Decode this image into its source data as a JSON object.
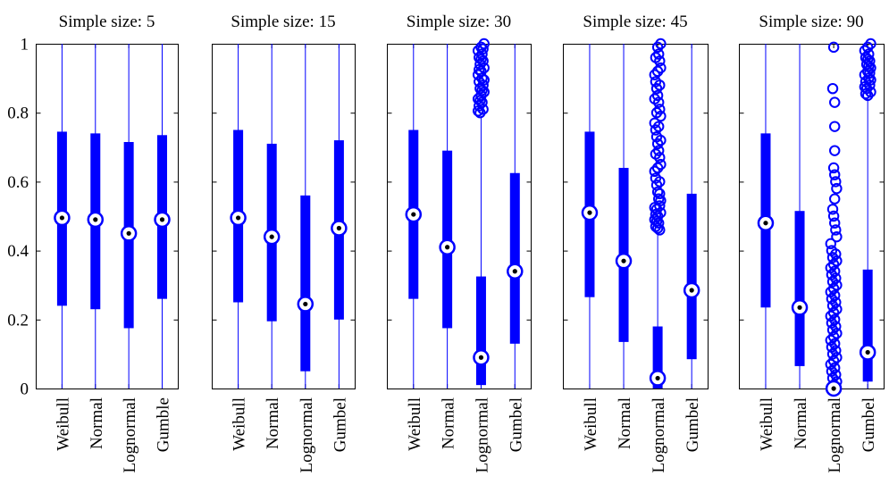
{
  "colors": {
    "box": "#0000ff",
    "axis": "#000000",
    "median_dot": "#000000",
    "median_bg": "#ffffff"
  },
  "chart_data": [
    {
      "type": "box",
      "title": "Simple size: 5",
      "categories": [
        "Weibull",
        "Normal",
        "Lognormal",
        "Gumble"
      ],
      "ylim": [
        0,
        1
      ],
      "yticks": [
        "0",
        "0.2",
        "0.4",
        "0.6",
        "0.8",
        "1"
      ],
      "grid": false,
      "boxes": [
        {
          "q1": 0.24,
          "median": 0.495,
          "q3": 0.745,
          "whisker_low": 0.0,
          "whisker_high": 1.0,
          "outliers": []
        },
        {
          "q1": 0.23,
          "median": 0.49,
          "q3": 0.74,
          "whisker_low": 0.0,
          "whisker_high": 1.0,
          "outliers": []
        },
        {
          "q1": 0.175,
          "median": 0.45,
          "q3": 0.715,
          "whisker_low": 0.0,
          "whisker_high": 1.0,
          "outliers": []
        },
        {
          "q1": 0.26,
          "median": 0.49,
          "q3": 0.735,
          "whisker_low": 0.0,
          "whisker_high": 1.0,
          "outliers": []
        }
      ]
    },
    {
      "type": "box",
      "title": "Simple size: 15",
      "categories": [
        "Weibull",
        "Normal",
        "Lognormal",
        "Gumbel"
      ],
      "ylim": [
        0,
        1
      ],
      "grid": false,
      "boxes": [
        {
          "q1": 0.25,
          "median": 0.495,
          "q3": 0.75,
          "whisker_low": 0.0,
          "whisker_high": 1.0,
          "outliers": []
        },
        {
          "q1": 0.195,
          "median": 0.44,
          "q3": 0.71,
          "whisker_low": 0.0,
          "whisker_high": 1.0,
          "outliers": []
        },
        {
          "q1": 0.05,
          "median": 0.245,
          "q3": 0.56,
          "whisker_low": 0.0,
          "whisker_high": 1.0,
          "outliers": []
        },
        {
          "q1": 0.2,
          "median": 0.465,
          "q3": 0.72,
          "whisker_low": 0.0,
          "whisker_high": 1.0,
          "outliers": []
        }
      ]
    },
    {
      "type": "box",
      "title": "Simple size: 30",
      "categories": [
        "Weibull",
        "Normal",
        "Lognormal",
        "Gumbel"
      ],
      "ylim": [
        0,
        1
      ],
      "grid": false,
      "boxes": [
        {
          "q1": 0.26,
          "median": 0.505,
          "q3": 0.75,
          "whisker_low": 0.0,
          "whisker_high": 1.0,
          "outliers": []
        },
        {
          "q1": 0.175,
          "median": 0.41,
          "q3": 0.69,
          "whisker_low": 0.0,
          "whisker_high": 1.0,
          "outliers": []
        },
        {
          "q1": 0.01,
          "median": 0.09,
          "q3": 0.325,
          "whisker_low": 0.0,
          "whisker_high": 0.79,
          "outliers": [
            0.8,
            0.81,
            0.82,
            0.83,
            0.84,
            0.85,
            0.86,
            0.87,
            0.88,
            0.89,
            0.9,
            0.91,
            0.92,
            0.93,
            0.94,
            0.95,
            0.96,
            0.97,
            0.98,
            0.99,
            1.0,
            0.805,
            0.835,
            0.865,
            0.895,
            0.925,
            0.955,
            0.985
          ]
        },
        {
          "q1": 0.13,
          "median": 0.34,
          "q3": 0.625,
          "whisker_low": 0.0,
          "whisker_high": 1.0,
          "outliers": []
        }
      ]
    },
    {
      "type": "box",
      "title": "Simple size: 45",
      "categories": [
        "Weibull",
        "Normal",
        "Lognormal",
        "Gumbel"
      ],
      "ylim": [
        0,
        1
      ],
      "grid": false,
      "boxes": [
        {
          "q1": 0.265,
          "median": 0.51,
          "q3": 0.745,
          "whisker_low": 0.0,
          "whisker_high": 1.0,
          "outliers": []
        },
        {
          "q1": 0.135,
          "median": 0.37,
          "q3": 0.64,
          "whisker_low": 0.0,
          "whisker_high": 1.0,
          "outliers": []
        },
        {
          "q1": 0.0,
          "median": 0.03,
          "q3": 0.18,
          "whisker_low": 0.0,
          "whisker_high": 0.45,
          "outliers": [
            0.46,
            0.47,
            0.48,
            0.49,
            0.5,
            0.51,
            0.52,
            0.53,
            0.55,
            0.57,
            0.59,
            0.61,
            0.63,
            0.65,
            0.67,
            0.69,
            0.71,
            0.73,
            0.75,
            0.77,
            0.79,
            0.81,
            0.83,
            0.85,
            0.87,
            0.89,
            0.91,
            0.93,
            0.95,
            0.97,
            0.99,
            1.0,
            0.465,
            0.485,
            0.505,
            0.525,
            0.545,
            0.565,
            0.6,
            0.64,
            0.68,
            0.72,
            0.76,
            0.8,
            0.84,
            0.88,
            0.92,
            0.96
          ]
        },
        {
          "q1": 0.085,
          "median": 0.285,
          "q3": 0.565,
          "whisker_low": 0.0,
          "whisker_high": 1.0,
          "outliers": []
        }
      ]
    },
    {
      "type": "box",
      "title": "Simple size: 90",
      "categories": [
        "Weibull",
        "Normal",
        "Lognormal",
        "Gumbel"
      ],
      "ylim": [
        0,
        1
      ],
      "grid": false,
      "boxes": [
        {
          "q1": 0.235,
          "median": 0.48,
          "q3": 0.74,
          "whisker_low": 0.0,
          "whisker_high": 1.0,
          "outliers": []
        },
        {
          "q1": 0.065,
          "median": 0.235,
          "q3": 0.515,
          "whisker_low": 0.0,
          "whisker_high": 1.0,
          "outliers": []
        },
        {
          "q1": 0.0,
          "median": 0.0,
          "q3": 0.0,
          "whisker_low": 0.0,
          "whisker_high": 0.0,
          "outliers": [
            0.01,
            0.02,
            0.03,
            0.04,
            0.05,
            0.06,
            0.07,
            0.08,
            0.09,
            0.1,
            0.11,
            0.12,
            0.13,
            0.14,
            0.15,
            0.16,
            0.17,
            0.18,
            0.19,
            0.2,
            0.21,
            0.22,
            0.23,
            0.24,
            0.25,
            0.26,
            0.27,
            0.28,
            0.29,
            0.3,
            0.31,
            0.32,
            0.33,
            0.34,
            0.35,
            0.36,
            0.37,
            0.38,
            0.39,
            0.4,
            0.42,
            0.44,
            0.46,
            0.48,
            0.5,
            0.52,
            0.55,
            0.58,
            0.6,
            0.62,
            0.64,
            0.69,
            0.76,
            0.83,
            0.87,
            0.99
          ]
        },
        {
          "q1": 0.02,
          "median": 0.105,
          "q3": 0.345,
          "whisker_low": 0.0,
          "whisker_high": 0.84,
          "outliers": [
            0.85,
            0.86,
            0.87,
            0.88,
            0.89,
            0.9,
            0.91,
            0.92,
            0.93,
            0.94,
            0.95,
            0.96,
            0.97,
            0.98,
            0.99,
            1.0,
            0.855,
            0.875,
            0.895,
            0.915,
            0.935,
            0.955
          ]
        }
      ]
    }
  ]
}
